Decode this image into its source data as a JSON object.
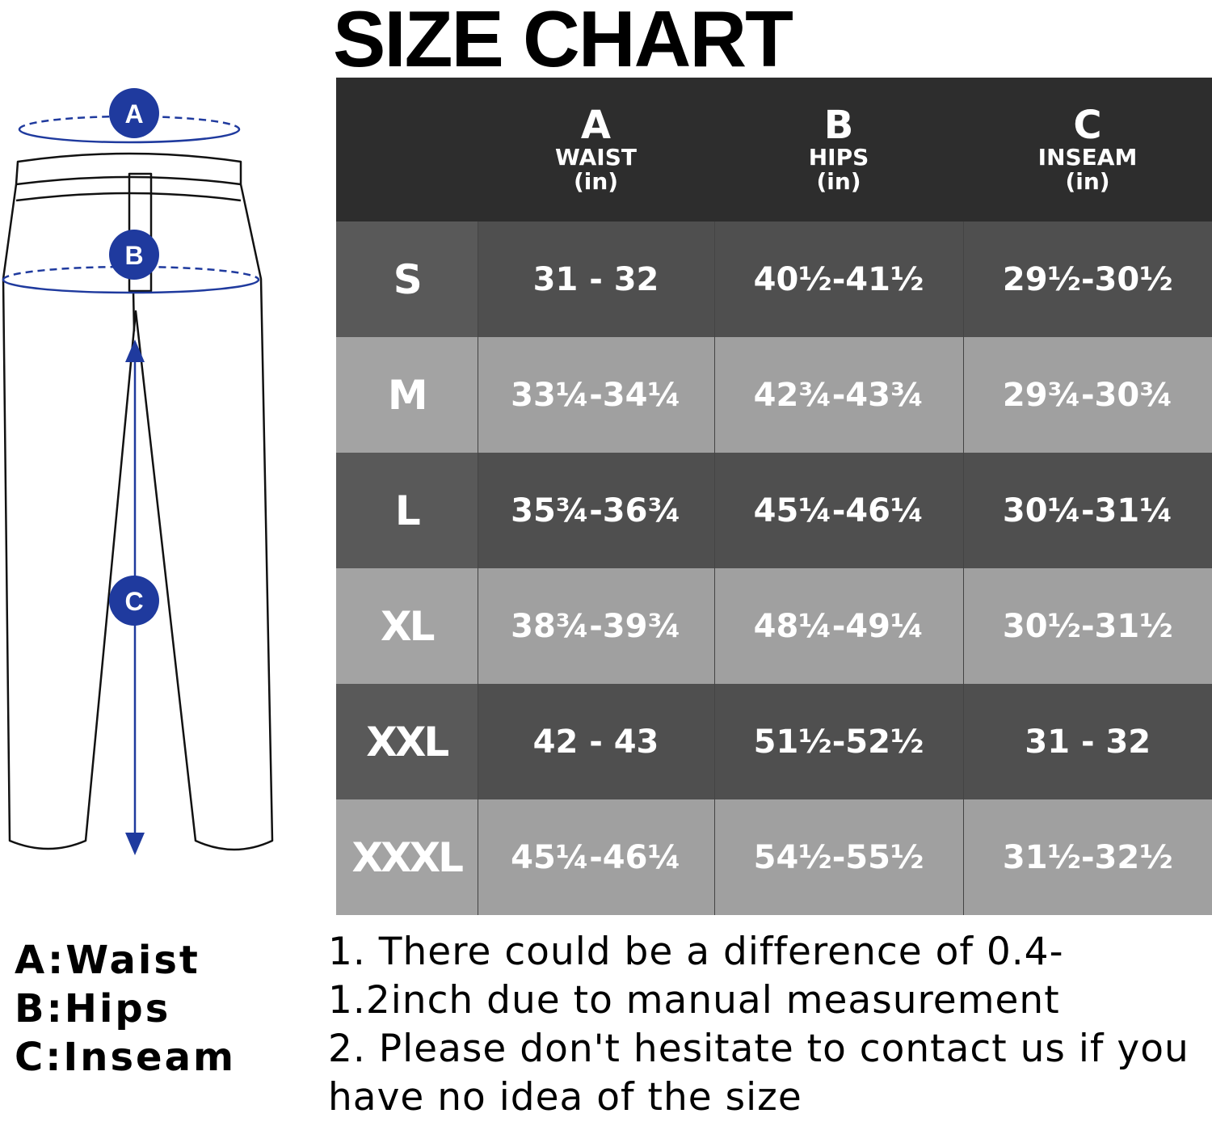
{
  "title": "SIZE CHART",
  "diagram": {
    "markers": [
      "A",
      "B",
      "C"
    ],
    "accent_color": "#1f3a9e",
    "icon": "pants-outline-icon"
  },
  "legend": [
    "A:Waist",
    "B:Hips",
    "C:Inseam"
  ],
  "table": {
    "columns": [
      {
        "letter": "A",
        "name": "WAIST",
        "unit": "(in)"
      },
      {
        "letter": "B",
        "name": "HIPS",
        "unit": "(in)"
      },
      {
        "letter": "C",
        "name": "INSEAM",
        "unit": "(in)"
      }
    ],
    "rows": [
      {
        "size": "S",
        "waist": "31 - 32",
        "hips": "40½-41½",
        "inseam": "29½-30½"
      },
      {
        "size": "M",
        "waist": "33¼-34¼",
        "hips": "42¾-43¾",
        "inseam": "29¾-30¾"
      },
      {
        "size": "L",
        "waist": "35¾-36¾",
        "hips": "45¼-46¼",
        "inseam": "30¼-31¼"
      },
      {
        "size": "XL",
        "waist": "38¾-39¾",
        "hips": "48¼-49¼",
        "inseam": "30½-31½"
      },
      {
        "size": "XXL",
        "waist": "42 - 43",
        "hips": "51½-52½",
        "inseam": "31 - 32"
      },
      {
        "size": "XXXL",
        "waist": "45¼-46¼",
        "hips": "54½-55½",
        "inseam": "31½-32½"
      }
    ]
  },
  "notes": [
    "1. There could be a difference of 0.4-1.2inch due to manual measurement",
    "2. Please don't hesitate to contact us if you have no idea of the size"
  ]
}
